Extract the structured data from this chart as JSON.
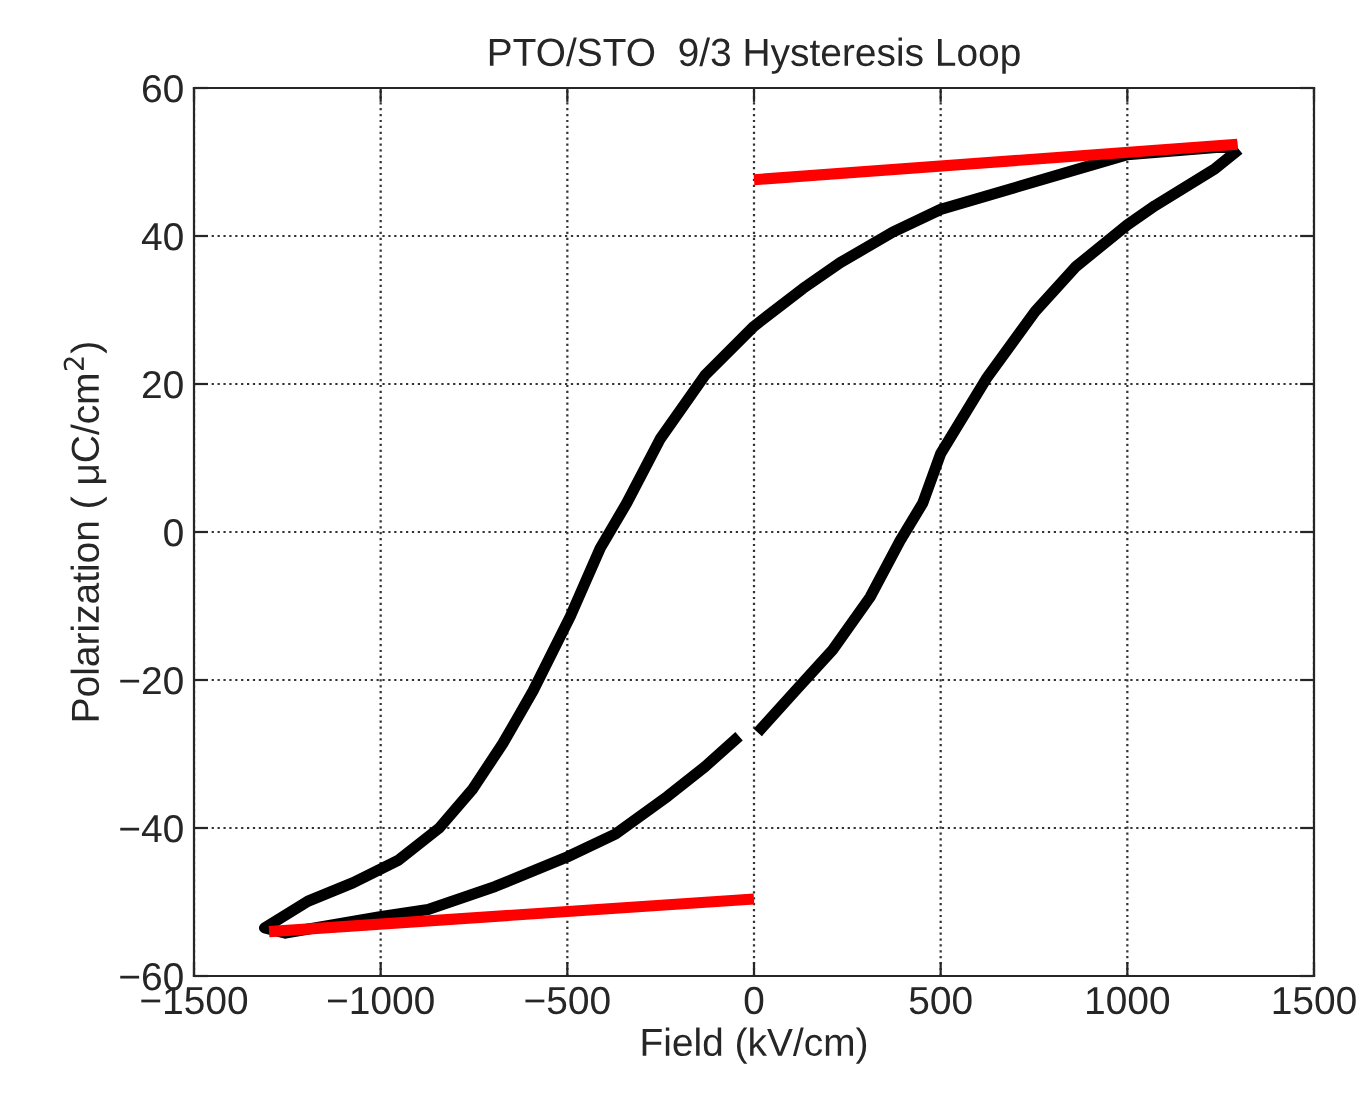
{
  "chart_data": {
    "type": "line",
    "title": "PTO/STO  9/3 Hysteresis Loop",
    "xlabel": "Field (kV/cm)",
    "ylabel": "Polarization ( μC/cm$^{2}$)",
    "series": [
      {
        "color": "#000000",
        "x": [
          1295,
          1000,
          500,
          371,
          231,
          131,
          0,
          -131,
          -251,
          -341,
          -412,
          -492,
          -592,
          -673,
          -753,
          -843,
          -954,
          -1074,
          -1195,
          -1311,
          -1255,
          -1002,
          -873,
          -693,
          -500,
          -371,
          -231,
          -131,
          -40,
          -15,
          10,
          110,
          211,
          311,
          391,
          452,
          500,
          622,
          753,
          863,
          1000,
          1074,
          1235,
          1299
        ],
        "values": [
          52.2,
          51.0,
          43.6,
          40.5,
          36.4,
          32.9,
          27.8,
          21.2,
          12.6,
          3.9,
          -2.2,
          -11.4,
          -21.5,
          -28.6,
          -34.7,
          -40,
          -44.4,
          -47.4,
          -49.9,
          -53.5,
          -54.2,
          -52,
          -51,
          -47.9,
          -43.9,
          -40.8,
          -35.7,
          -31.7,
          -27.6,
          null,
          -27.1,
          -21.5,
          -15.9,
          -8.8,
          -1.2,
          3.9,
          10.6,
          20.7,
          29.8,
          35.9,
          41.5,
          44.1,
          49.1,
          51.7
        ]
      },
      {
        "color": "#ff0000",
        "x": [
          0,
          1295
        ],
        "values": [
          47.6,
          52.4
        ]
      },
      {
        "color": "#ff0000",
        "x": [
          -1299,
          0
        ],
        "values": [
          -54.0,
          -49.6
        ]
      }
    ],
    "xlim": [
      -1500,
      1500
    ],
    "ylim": [
      -60,
      60
    ],
    "xticks": [
      {
        "value": -1500,
        "label": "−1500"
      },
      {
        "value": -1000,
        "label": "−1000"
      },
      {
        "value": -500,
        "label": "−500"
      },
      0,
      500,
      1000,
      1500
    ],
    "yticks": [
      {
        "value": -60,
        "label": "−60"
      },
      {
        "value": -40,
        "label": "−40"
      },
      {
        "value": -20,
        "label": "−20"
      },
      0,
      20,
      40,
      60
    ],
    "grid": true,
    "line_style": "solid",
    "legend": false
  }
}
